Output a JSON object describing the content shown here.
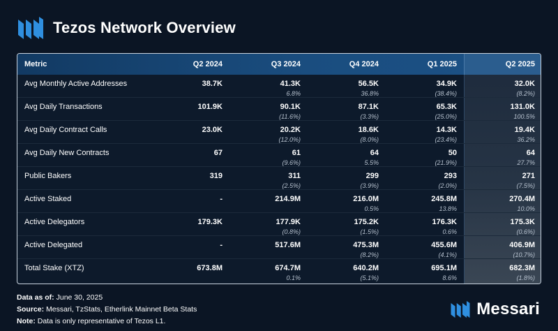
{
  "header": {
    "title": "Tezos Network Overview"
  },
  "table": {
    "columns": [
      "Metric",
      "Q2 2024",
      "Q3 2024",
      "Q4 2024",
      "Q1 2025",
      "Q2 2025"
    ],
    "rows": [
      {
        "metric": "Avg Monthly Active Addresses",
        "cells": [
          {
            "v": "38.7K",
            "c": ""
          },
          {
            "v": "41.3K",
            "c": "6.8%"
          },
          {
            "v": "56.5K",
            "c": "36.8%"
          },
          {
            "v": "34.9K",
            "c": "(38.4%)"
          },
          {
            "v": "32.0K",
            "c": "(8.2%)"
          }
        ]
      },
      {
        "metric": "Avg Daily Transactions",
        "cells": [
          {
            "v": "101.9K",
            "c": ""
          },
          {
            "v": "90.1K",
            "c": "(11.6%)"
          },
          {
            "v": "87.1K",
            "c": "(3.3%)"
          },
          {
            "v": "65.3K",
            "c": "(25.0%)"
          },
          {
            "v": "131.0K",
            "c": "100.5%"
          }
        ]
      },
      {
        "metric": "Avg Daily Contract Calls",
        "cells": [
          {
            "v": "23.0K",
            "c": ""
          },
          {
            "v": "20.2K",
            "c": "(12.0%)"
          },
          {
            "v": "18.6K",
            "c": "(8.0%)"
          },
          {
            "v": "14.3K",
            "c": "(23.4%)"
          },
          {
            "v": "19.4K",
            "c": "36.2%"
          }
        ]
      },
      {
        "metric": "Avg Daily New Contracts",
        "cells": [
          {
            "v": "67",
            "c": ""
          },
          {
            "v": "61",
            "c": "(9.6%)"
          },
          {
            "v": "64",
            "c": "5.5%"
          },
          {
            "v": "50",
            "c": "(21.9%)"
          },
          {
            "v": "64",
            "c": "27.7%"
          }
        ]
      },
      {
        "metric": "Public Bakers",
        "cells": [
          {
            "v": "319",
            "c": ""
          },
          {
            "v": "311",
            "c": "(2.5%)"
          },
          {
            "v": "299",
            "c": "(3.9%)"
          },
          {
            "v": "293",
            "c": "(2.0%)"
          },
          {
            "v": "271",
            "c": "(7.5%)"
          }
        ]
      },
      {
        "metric": "Active Staked",
        "cells": [
          {
            "v": "-",
            "c": ""
          },
          {
            "v": "214.9M",
            "c": ""
          },
          {
            "v": "216.0M",
            "c": "0.5%"
          },
          {
            "v": "245.8M",
            "c": "13.8%"
          },
          {
            "v": "270.4M",
            "c": "10.0%"
          }
        ]
      },
      {
        "metric": "Active Delegators",
        "cells": [
          {
            "v": "179.3K",
            "c": ""
          },
          {
            "v": "177.9K",
            "c": "(0.8%)"
          },
          {
            "v": "175.2K",
            "c": "(1.5%)"
          },
          {
            "v": "176.3K",
            "c": "0.6%"
          },
          {
            "v": "175.3K",
            "c": "(0.6%)"
          }
        ]
      },
      {
        "metric": "Active Delegated",
        "cells": [
          {
            "v": "-",
            "c": ""
          },
          {
            "v": "517.6M",
            "c": ""
          },
          {
            "v": "475.3M",
            "c": "(8.2%)"
          },
          {
            "v": "455.6M",
            "c": "(4.1%)"
          },
          {
            "v": "406.9M",
            "c": "(10.7%)"
          }
        ]
      },
      {
        "metric": "Total Stake (XTZ)",
        "cells": [
          {
            "v": "673.8M",
            "c": ""
          },
          {
            "v": "674.7M",
            "c": "0.1%"
          },
          {
            "v": "640.2M",
            "c": "(5.1%)"
          },
          {
            "v": "695.1M",
            "c": "8.6%"
          },
          {
            "v": "682.3M",
            "c": "(1.8%)"
          }
        ]
      }
    ]
  },
  "footer": {
    "date_label": "Data as of:",
    "date_value": "June 30, 2025",
    "source_label": "Source:",
    "source_value": "Messari, TzStats, Etherlink Mainnet Beta Stats",
    "note_label": "Note:",
    "note_value": "Data is only representative of Tezos L1."
  },
  "brand": {
    "name": "Messari"
  },
  "colors": {
    "background": "#0b1524",
    "header": "#1a4d7f",
    "highlight": "#2b5d8e",
    "logo": "#2f8fe0"
  }
}
